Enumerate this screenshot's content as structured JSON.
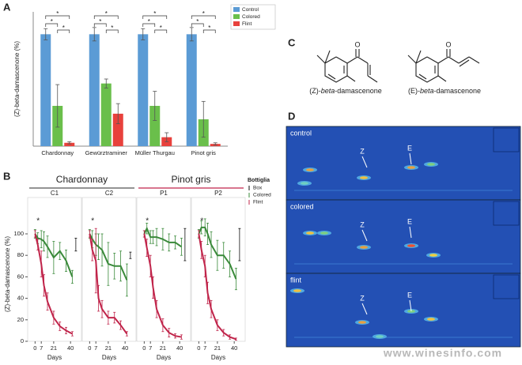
{
  "chart_data": [
    {
      "type": "bar",
      "panel": "A",
      "ylabel": "(Z)-beta-damascenone (%)",
      "categories": [
        "Chardonnay",
        "Gewürztraminer",
        "Müller Thurgau",
        "Pinot gris"
      ],
      "series": [
        {
          "name": "Control",
          "color": "#5b9bd5",
          "values": [
            100,
            100,
            100,
            100
          ],
          "errors": [
            5,
            6,
            5,
            6
          ]
        },
        {
          "name": "Colored",
          "color": "#6abf4b",
          "values": [
            36,
            56,
            36,
            24
          ],
          "errors": [
            19,
            4,
            13,
            16
          ]
        },
        {
          "name": "Flint",
          "color": "#e8413c",
          "values": [
            3,
            29,
            8,
            2
          ],
          "errors": [
            1,
            9,
            4,
            1
          ]
        }
      ],
      "ylim": [
        0,
        120
      ],
      "annotation": "*"
    },
    {
      "type": "line",
      "panel": "B",
      "ylabel": "(Z)-beta-damascenone (%)",
      "xlabel": "Days",
      "legend_title": "Bottiglia",
      "legend": [
        {
          "name": "Box",
          "color": "#111111"
        },
        {
          "name": "Colored",
          "color": "#3a8a3a"
        },
        {
          "name": "Flint",
          "color": "#c0244a"
        }
      ],
      "x": [
        0,
        3,
        7,
        10,
        14,
        21,
        28,
        35,
        42,
        46
      ],
      "xlim": [
        -3,
        47
      ],
      "xticks": [
        0,
        7,
        21,
        40
      ],
      "ylim": [
        0,
        125
      ],
      "yticks": [
        0,
        20,
        40,
        60,
        80,
        100
      ],
      "annotation": "*",
      "groups": [
        {
          "name": "Chardonnay",
          "color": "#555555",
          "panels": [
            {
              "title": "C1",
              "series": [
                {
                  "values": [
                    null,
                    null,
                    null,
                    null,
                    null,
                    null,
                    null,
                    null,
                    null,
                    90
                  ],
                  "errors": [
                    null,
                    null,
                    null,
                    null,
                    null,
                    null,
                    null,
                    null,
                    null,
                    6
                  ]
                },
                {
                  "values": [
                    100,
                    96,
                    95,
                    93,
                    88,
                    78,
                    84,
                    75,
                    60,
                    null
                  ],
                  "errors": [
                    4,
                    5,
                    8,
                    9,
                    10,
                    15,
                    8,
                    10,
                    6,
                    null
                  ]
                },
                {
                  "values": [
                    100,
                    90,
                    72,
                    52,
                    37,
                    22,
                    14,
                    10,
                    7,
                    null
                  ],
                  "errors": [
                    3,
                    5,
                    12,
                    10,
                    8,
                    6,
                    4,
                    3,
                    2,
                    null
                  ]
                }
              ]
            },
            {
              "title": "C2",
              "series": [
                {
                  "values": [
                    null,
                    null,
                    null,
                    null,
                    null,
                    null,
                    null,
                    null,
                    null,
                    80
                  ],
                  "errors": [
                    null,
                    null,
                    null,
                    null,
                    null,
                    null,
                    null,
                    null,
                    null,
                    3
                  ]
                },
                {
                  "values": [
                    100,
                    95,
                    90,
                    88,
                    85,
                    72,
                    70,
                    70,
                    57,
                    null
                  ],
                  "errors": [
                    4,
                    8,
                    10,
                    12,
                    15,
                    20,
                    12,
                    14,
                    15,
                    null
                  ]
                },
                {
                  "values": [
                    100,
                    85,
                    75,
                    40,
                    30,
                    22,
                    22,
                    15,
                    7,
                    null
                  ],
                  "errors": [
                    3,
                    10,
                    30,
                    12,
                    8,
                    6,
                    5,
                    4,
                    2,
                    null
                  ]
                }
              ]
            }
          ]
        },
        {
          "name": "Pinot gris",
          "color": "#c0244a",
          "panels": [
            {
              "title": "P1",
              "series": [
                {
                  "values": [
                    null,
                    null,
                    null,
                    null,
                    null,
                    null,
                    null,
                    null,
                    null,
                    90
                  ],
                  "errors": [
                    null,
                    null,
                    null,
                    null,
                    null,
                    null,
                    null,
                    null,
                    null,
                    15
                  ]
                },
                {
                  "values": [
                    100,
                    105,
                    97,
                    97,
                    97,
                    95,
                    92,
                    92,
                    88,
                    null
                  ],
                  "errors": [
                    3,
                    5,
                    6,
                    6,
                    8,
                    10,
                    8,
                    6,
                    8,
                    null
                  ]
                },
                {
                  "values": [
                    100,
                    87,
                    70,
                    50,
                    30,
                    15,
                    8,
                    5,
                    4,
                    null
                  ],
                  "errors": [
                    3,
                    8,
                    10,
                    10,
                    8,
                    6,
                    4,
                    2,
                    2,
                    null
                  ]
                }
              ]
            },
            {
              "title": "P2",
              "series": [
                {
                  "values": [
                    null,
                    null,
                    null,
                    null,
                    null,
                    null,
                    null,
                    null,
                    null,
                    90
                  ],
                  "errors": [
                    null,
                    null,
                    null,
                    null,
                    null,
                    null,
                    null,
                    null,
                    null,
                    15
                  ]
                },
                {
                  "values": [
                    100,
                    106,
                    106,
                    100,
                    90,
                    80,
                    80,
                    72,
                    58,
                    null
                  ],
                  "errors": [
                    4,
                    6,
                    8,
                    10,
                    12,
                    14,
                    12,
                    12,
                    10,
                    null
                  ]
                },
                {
                  "values": [
                    100,
                    85,
                    70,
                    45,
                    30,
                    15,
                    8,
                    4,
                    2,
                    null
                  ],
                  "errors": [
                    3,
                    8,
                    10,
                    10,
                    8,
                    5,
                    3,
                    2,
                    1,
                    null
                  ]
                }
              ]
            }
          ]
        }
      ]
    }
  ],
  "panel_c": {
    "label": "C",
    "compounds": [
      {
        "atom": "O",
        "prefix": "(Z)-",
        "italic": "beta",
        "suffix": "-damascenone"
      },
      {
        "atom": "O",
        "prefix": "(E)-",
        "italic": "beta",
        "suffix": "-damascenone"
      }
    ]
  },
  "panel_d": {
    "label": "D",
    "chromatograms": [
      {
        "name": "control",
        "peaks": [
          "Z",
          "E"
        ]
      },
      {
        "name": "colored",
        "peaks": [
          "Z",
          "E"
        ]
      },
      {
        "name": "flint",
        "peaks": [
          "Z",
          "E"
        ]
      }
    ],
    "watermark": "www.winesinfo.com"
  }
}
